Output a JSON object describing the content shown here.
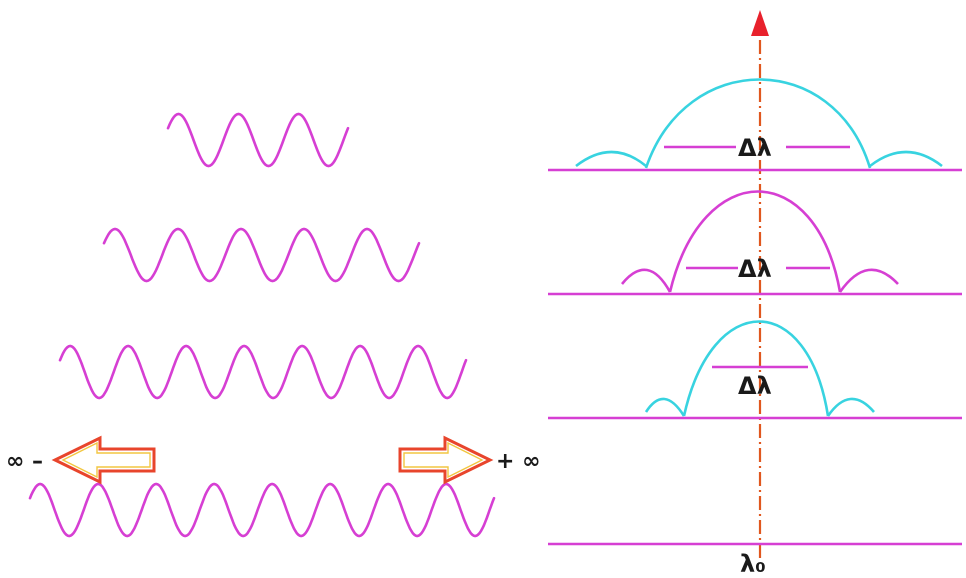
{
  "labels": {
    "delta_lambda": "Δλ",
    "lambda_zero": "λ₀",
    "minus_infinity": "∞ –",
    "plus_infinity": "+ ∞"
  },
  "waves": [
    {
      "cycles": 3
    },
    {
      "cycles": 5
    },
    {
      "cycles": 7
    },
    {
      "cycles": 8
    }
  ],
  "spectra": [
    {
      "peak_color": "cyan"
    },
    {
      "peak_color": "magenta"
    },
    {
      "peak_color": "cyan"
    },
    {
      "peak_color": "none"
    }
  ],
  "colors": {
    "wave": "#d63fd3",
    "spectrum_alt": "#38d3e0",
    "centre_line": "#e0571e",
    "arrow_outline": "#e8452c"
  }
}
